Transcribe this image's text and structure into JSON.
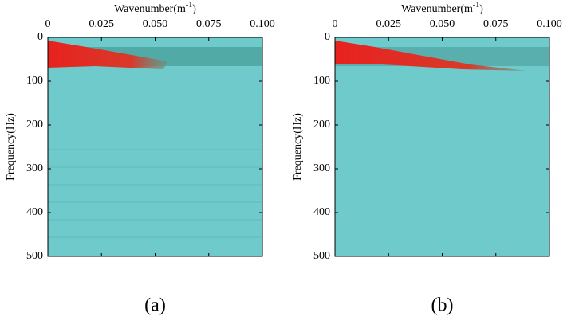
{
  "chart_data": [
    {
      "type": "heatmap",
      "xlabel": "Wavenumber(m",
      "xlabel_exponent": "-1",
      "xlabel_close": ")",
      "ylabel": "Frequency(Hz)",
      "xlim": [
        0,
        0.1
      ],
      "ylim": [
        0,
        500
      ],
      "y_reversed": true,
      "x_axis_top": true,
      "xticks": [
        0,
        0.025,
        {
          "value": 0.05,
          "label": "0.050"
        },
        0.075,
        {
          "value": 0.1,
          "label": "0.100"
        }
      ],
      "yticks": [
        0,
        100,
        200,
        300,
        400,
        500
      ],
      "caption": "(a)"
    },
    {
      "type": "heatmap",
      "xlabel": "Wavenumber(m",
      "xlabel_exponent": "-1",
      "xlabel_close": ")",
      "ylabel": "Frequency(Hz)",
      "xlim": [
        0,
        0.1
      ],
      "ylim": [
        0,
        500
      ],
      "y_reversed": true,
      "x_axis_top": true,
      "xticks": [
        0,
        0.025,
        {
          "value": 0.05,
          "label": "0.050"
        },
        0.075,
        {
          "value": 0.1,
          "label": "0.100"
        }
      ],
      "yticks": [
        0,
        100,
        200,
        300,
        400,
        500
      ],
      "caption": "(b)"
    }
  ]
}
